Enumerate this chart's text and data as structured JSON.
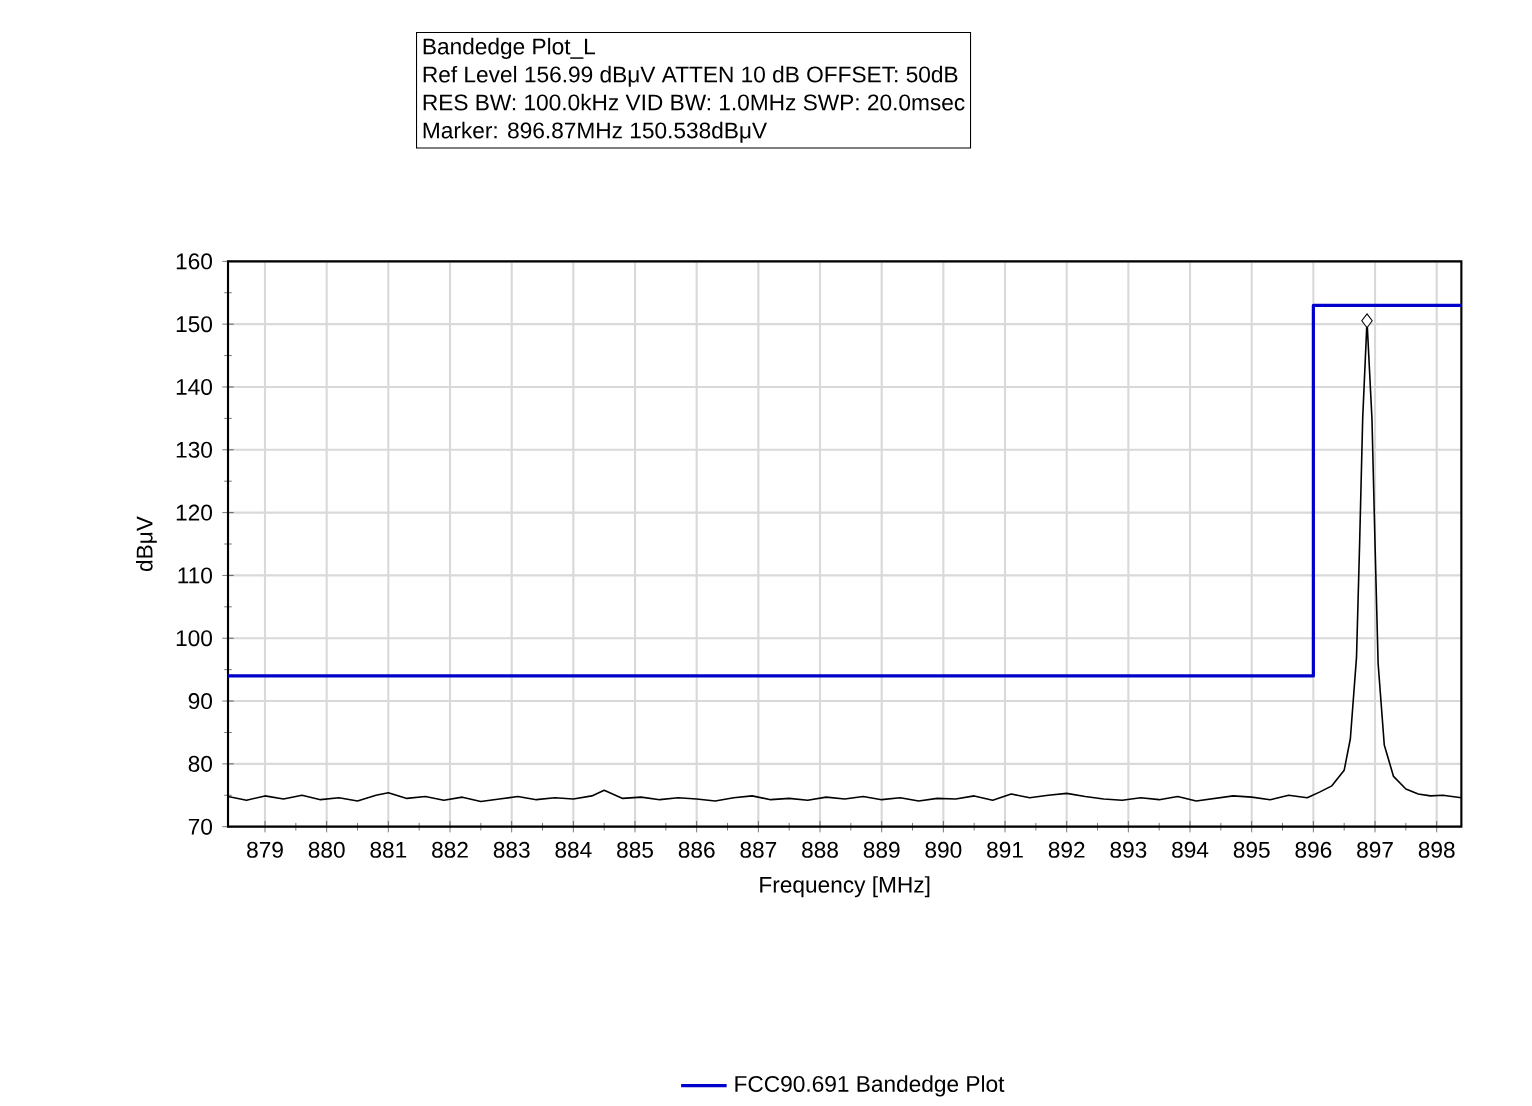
{
  "chart_data": {
    "type": "line",
    "title": "Bandedge Plot_L",
    "annotations": [
      "Ref Level 156.99 dBμV    ATTEN 10 dB    OFFSET: 50dB",
      "RES BW: 100.0kHz  VID BW: 1.0MHz  SWP: 20.0msec",
      "Marker: 896.87MHz  150.538dBμV"
    ],
    "xlabel": "Frequency [MHz]",
    "ylabel": "dBμV",
    "xlim": [
      878.4,
      898.4
    ],
    "ylim": [
      70,
      160
    ],
    "xticks": [
      879,
      880,
      881,
      882,
      883,
      884,
      885,
      886,
      887,
      888,
      889,
      890,
      891,
      892,
      893,
      894,
      895,
      896,
      897,
      898
    ],
    "yticks": [
      70,
      80,
      90,
      100,
      110,
      120,
      130,
      140,
      150,
      160
    ],
    "grid": true,
    "legend": "bottom",
    "series": [
      {
        "color": "#000000",
        "marker": "none",
        "x": [
          878.4,
          878.7,
          879.0,
          879.3,
          879.6,
          879.9,
          880.2,
          880.5,
          880.8,
          881.0,
          881.3,
          881.6,
          881.9,
          882.2,
          882.5,
          882.8,
          883.1,
          883.4,
          883.7,
          884.0,
          884.3,
          884.5,
          884.8,
          885.1,
          885.4,
          885.7,
          886.0,
          886.3,
          886.6,
          886.9,
          887.2,
          887.5,
          887.8,
          888.1,
          888.4,
          888.7,
          889.0,
          889.3,
          889.6,
          889.9,
          890.2,
          890.5,
          890.8,
          891.1,
          891.4,
          891.7,
          892.0,
          892.3,
          892.6,
          892.9,
          893.2,
          893.5,
          893.8,
          894.1,
          894.4,
          894.7,
          895.0,
          895.3,
          895.6,
          895.9,
          896.1,
          896.3,
          896.5,
          896.6,
          896.7,
          896.75,
          896.8,
          896.87,
          896.95,
          897.0,
          897.05,
          897.15,
          897.3,
          897.5,
          897.7,
          897.9,
          898.1,
          898.4
        ],
        "values": [
          74.8,
          74.2,
          74.9,
          74.4,
          75.0,
          74.3,
          74.6,
          74.1,
          75.0,
          75.4,
          74.5,
          74.8,
          74.2,
          74.7,
          74.0,
          74.4,
          74.8,
          74.3,
          74.6,
          74.4,
          74.9,
          75.8,
          74.5,
          74.7,
          74.3,
          74.6,
          74.4,
          74.1,
          74.6,
          74.9,
          74.3,
          74.5,
          74.2,
          74.7,
          74.4,
          74.8,
          74.3,
          74.6,
          74.1,
          74.5,
          74.4,
          74.9,
          74.2,
          75.2,
          74.6,
          75.0,
          75.3,
          74.8,
          74.4,
          74.2,
          74.6,
          74.3,
          74.8,
          74.1,
          74.5,
          74.9,
          74.7,
          74.3,
          75.0,
          74.6,
          75.5,
          76.5,
          79.0,
          84.0,
          97.0,
          115.0,
          135.0,
          150.538,
          135.0,
          115.0,
          96.0,
          83.0,
          78.0,
          76.0,
          75.2,
          74.9,
          75.0,
          74.6
        ]
      },
      {
        "name": "FCC90.691 Bandedge Plot",
        "color": "#0000cc",
        "marker": "none",
        "x": [
          878.4,
          896.0,
          896.0,
          898.4
        ],
        "values": [
          94,
          94,
          153,
          153
        ]
      },
      {
        "type": "scatter",
        "color": "#000000",
        "marker": "diamond",
        "x": [
          896.87
        ],
        "values": [
          150.538
        ]
      }
    ]
  }
}
